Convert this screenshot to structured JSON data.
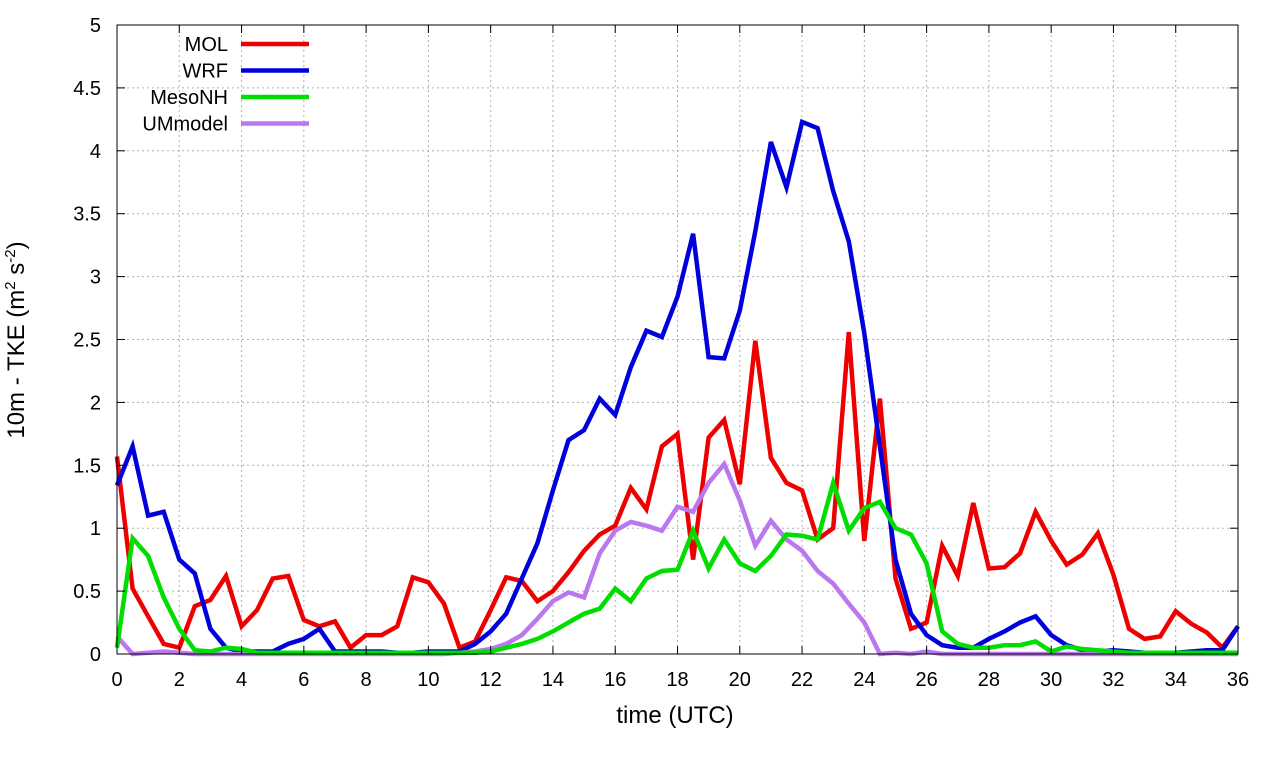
{
  "chart_data": {
    "type": "line",
    "xlabel": "time (UTC)",
    "ylabel": "10m - TKE (m² s⁻²)",
    "ylabel_parts": {
      "base": "10m - TKE (m",
      "exp1": "2",
      "mid": " s",
      "exp2": "-2",
      "end": ")"
    },
    "xlim": [
      0,
      36
    ],
    "ylim": [
      0,
      5
    ],
    "xticks": [
      0,
      2,
      4,
      6,
      8,
      10,
      12,
      14,
      16,
      18,
      20,
      22,
      24,
      26,
      28,
      30,
      32,
      34,
      36
    ],
    "yticks": [
      0,
      0.5,
      1,
      1.5,
      2,
      2.5,
      3,
      3.5,
      4,
      4.5,
      5
    ],
    "xtick_labels": [
      "0",
      "2",
      "4",
      "6",
      "8",
      "10",
      "12",
      "14",
      "16",
      "18",
      "20",
      "22",
      "24",
      "26",
      "28",
      "30",
      "32",
      "34",
      "36"
    ],
    "ytick_labels": [
      "0",
      "0.5",
      "1",
      "1.5",
      "2",
      "2.5",
      "3",
      "3.5",
      "4",
      "4.5",
      "5"
    ],
    "grid": true,
    "legend_position": "top-left",
    "series": [
      {
        "name": "MOL",
        "color": "#ee0000",
        "x": [
          0,
          0.5,
          1,
          1.5,
          2,
          2.5,
          3,
          3.5,
          4,
          4.5,
          5,
          5.5,
          6,
          6.5,
          7,
          7.5,
          8,
          8.5,
          9,
          9.5,
          10,
          10.5,
          11,
          11.5,
          12,
          12.5,
          13,
          13.5,
          14,
          14.5,
          15,
          15.5,
          16,
          16.5,
          17,
          17.5,
          18,
          18.5,
          19,
          19.5,
          20,
          20.5,
          21,
          21.5,
          22,
          22.5,
          23,
          23.5,
          24,
          24.5,
          25,
          25.5,
          26,
          26.5,
          27,
          27.5,
          28,
          28.5,
          29,
          29.5,
          30,
          30.5,
          31,
          31.5,
          32,
          32.5,
          33,
          33.5,
          34,
          34.5,
          35,
          35.5,
          36
        ],
        "y": [
          1.57,
          0.52,
          0.3,
          0.08,
          0.05,
          0.38,
          0.43,
          0.62,
          0.22,
          0.35,
          0.6,
          0.62,
          0.27,
          0.22,
          0.26,
          0.05,
          0.15,
          0.15,
          0.22,
          0.61,
          0.57,
          0.4,
          0.05,
          0.1,
          0.35,
          0.61,
          0.58,
          0.42,
          0.5,
          0.65,
          0.82,
          0.95,
          1.02,
          1.32,
          1.15,
          1.65,
          1.75,
          0.75,
          1.72,
          1.86,
          1.35,
          2.49,
          1.56,
          1.36,
          1.3,
          0.91,
          1.0,
          2.56,
          0.9,
          2.03,
          0.6,
          0.2,
          0.25,
          0.86,
          0.62,
          1.2,
          0.68,
          0.69,
          0.8,
          1.13,
          0.9,
          0.71,
          0.79,
          0.96,
          0.63,
          0.2,
          0.12,
          0.14,
          0.34,
          0.24,
          0.17,
          0.05,
          0.22
        ]
      },
      {
        "name": "WRF",
        "color": "#0000dd",
        "x": [
          0,
          0.5,
          1,
          1.5,
          2,
          2.5,
          3,
          3.5,
          4,
          4.5,
          5,
          5.5,
          6,
          6.5,
          7,
          7.5,
          8,
          8.5,
          9,
          9.5,
          10,
          10.5,
          11,
          11.5,
          12,
          12.5,
          13,
          13.5,
          14,
          14.5,
          15,
          15.5,
          16,
          16.5,
          17,
          17.5,
          18,
          18.5,
          19,
          19.5,
          20,
          20.5,
          21,
          21.5,
          22,
          22.5,
          23,
          23.5,
          24,
          24.5,
          25,
          25.5,
          26,
          26.5,
          27,
          27.5,
          28,
          28.5,
          29,
          29.5,
          30,
          30.5,
          31,
          31.5,
          32,
          32.5,
          33,
          33.5,
          34,
          34.5,
          35,
          35.5,
          36
        ],
        "y": [
          1.34,
          1.65,
          1.1,
          1.13,
          0.75,
          0.64,
          0.2,
          0.05,
          0.02,
          0.02,
          0.02,
          0.08,
          0.12,
          0.2,
          0.02,
          0.02,
          0.02,
          0.02,
          0.01,
          0.01,
          0.02,
          0.02,
          0.02,
          0.08,
          0.18,
          0.32,
          0.6,
          0.88,
          1.3,
          1.7,
          1.78,
          2.03,
          1.9,
          2.28,
          2.57,
          2.52,
          2.84,
          3.34,
          2.36,
          2.35,
          2.73,
          3.36,
          4.07,
          3.71,
          4.23,
          4.18,
          3.68,
          3.28,
          2.55,
          1.65,
          0.75,
          0.32,
          0.15,
          0.07,
          0.05,
          0.05,
          0.12,
          0.18,
          0.25,
          0.3,
          0.15,
          0.07,
          0.03,
          0.02,
          0.03,
          0.02,
          0.01,
          0.01,
          0.01,
          0.02,
          0.03,
          0.03,
          0.22
        ]
      },
      {
        "name": "MesoNH",
        "color": "#00dd00",
        "x": [
          0,
          0.5,
          1,
          1.5,
          2,
          2.5,
          3,
          3.5,
          4,
          4.5,
          5,
          5.5,
          6,
          6.5,
          7,
          7.5,
          8,
          8.5,
          9,
          9.5,
          10,
          10.5,
          11,
          11.5,
          12,
          12.5,
          13,
          13.5,
          14,
          14.5,
          15,
          15.5,
          16,
          16.5,
          17,
          17.5,
          18,
          18.5,
          19,
          19.5,
          20,
          20.5,
          21,
          21.5,
          22,
          22.5,
          23,
          23.5,
          24,
          24.5,
          25,
          25.5,
          26,
          26.5,
          27,
          27.5,
          28,
          28.5,
          29,
          29.5,
          30,
          30.5,
          31,
          31.5,
          32,
          32.5,
          33,
          33.5,
          34,
          34.5,
          35,
          35.5,
          36
        ],
        "y": [
          0.05,
          0.92,
          0.78,
          0.45,
          0.2,
          0.03,
          0.02,
          0.05,
          0.04,
          0.01,
          0.01,
          0.01,
          0.01,
          0.01,
          0.01,
          0.01,
          0.01,
          0.01,
          0.01,
          0.01,
          0.01,
          0.01,
          0.01,
          0.01,
          0.02,
          0.05,
          0.08,
          0.12,
          0.18,
          0.25,
          0.32,
          0.36,
          0.52,
          0.42,
          0.6,
          0.66,
          0.67,
          0.98,
          0.68,
          0.91,
          0.72,
          0.66,
          0.78,
          0.95,
          0.94,
          0.91,
          1.36,
          0.98,
          1.16,
          1.21,
          1.0,
          0.95,
          0.72,
          0.18,
          0.08,
          0.05,
          0.05,
          0.07,
          0.07,
          0.1,
          0.02,
          0.06,
          0.04,
          0.03,
          0.02,
          0.01,
          0.01,
          0.01,
          0.01,
          0.01,
          0.01,
          0.01,
          0.01
        ]
      },
      {
        "name": "UMmodel",
        "color": "#bb77ee",
        "x": [
          0,
          0.5,
          1,
          1.5,
          2,
          2.5,
          3,
          3.5,
          4,
          4.5,
          5,
          5.5,
          6,
          6.5,
          7,
          7.5,
          8,
          8.5,
          9,
          9.5,
          10,
          10.5,
          11,
          11.5,
          12,
          12.5,
          13,
          13.5,
          14,
          14.5,
          15,
          15.5,
          16,
          16.5,
          17,
          17.5,
          18,
          18.5,
          19,
          19.5,
          20,
          20.5,
          21,
          21.5,
          22,
          22.5,
          23,
          23.5,
          24,
          24.5,
          25,
          25.5,
          26,
          26.5,
          27,
          27.5,
          28,
          28.5,
          29,
          29.5,
          30,
          30.5,
          31,
          31.5,
          32,
          32.5,
          33,
          33.5,
          34,
          34.5,
          35,
          35.5,
          36
        ],
        "y": [
          0.14,
          0.0,
          0.01,
          0.02,
          0.01,
          0.0,
          0.0,
          0.0,
          0.0,
          0.0,
          0.0,
          0.0,
          0.0,
          0.0,
          0.0,
          0.0,
          0.0,
          0.0,
          0.0,
          0.0,
          0.0,
          0.0,
          0.01,
          0.02,
          0.04,
          0.08,
          0.15,
          0.28,
          0.42,
          0.49,
          0.45,
          0.8,
          0.98,
          1.05,
          1.02,
          0.98,
          1.17,
          1.13,
          1.36,
          1.51,
          1.22,
          0.86,
          1.06,
          0.91,
          0.82,
          0.66,
          0.56,
          0.4,
          0.25,
          0.0,
          0.01,
          0.0,
          0.02,
          0.0,
          0.0,
          0.0,
          0.0,
          0.0,
          0.0,
          0.0,
          0.0,
          0.0,
          0.0,
          0.0,
          0.0,
          0.0,
          0.0,
          0.0,
          0.0,
          0.0,
          0.0,
          0.0,
          0.0
        ]
      }
    ]
  }
}
